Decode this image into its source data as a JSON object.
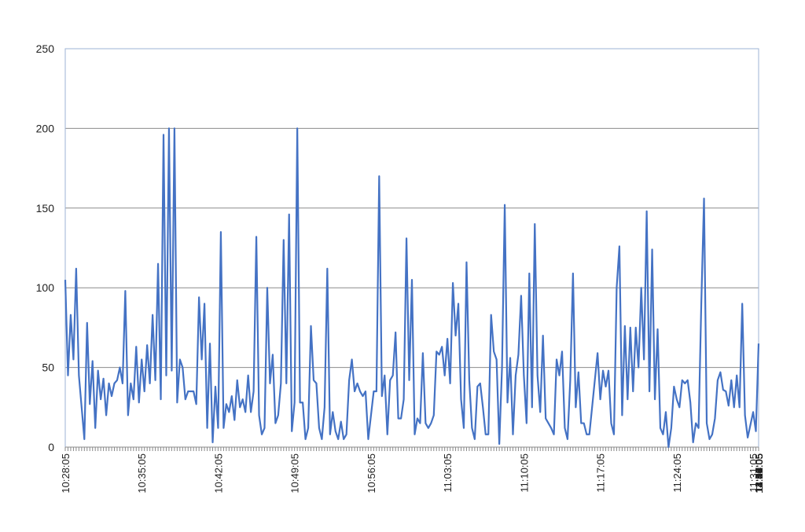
{
  "chart_data": {
    "type": "line",
    "title": "",
    "xlabel": "",
    "ylabel": "",
    "ylim": [
      0,
      250
    ],
    "y_ticks": [
      0,
      50,
      100,
      150,
      200,
      250
    ],
    "grid": "horizontal",
    "legend": "none",
    "colors": {
      "line": "#4472c4",
      "grid": "#8c8c8c",
      "frame": "#9db3d4"
    },
    "x_tick_labels": [
      "10:28:05",
      "10:35:05",
      "10:42:05",
      "10:49:05",
      "10:56:05",
      "11:03:05",
      "11:10:05",
      "11:17:05",
      "11:24:05",
      "11:31:05",
      "11:38:05",
      "11:45:05",
      "11:52:05",
      "11:59:05",
      "12:06:05",
      "12:13:05",
      "12:20:05",
      "12:27:05",
      "12:34:05",
      "12:41:05",
      "12:48:05",
      "12:55:05",
      "13:02:05",
      "13:09:05",
      "13:16:05",
      "13:23:05",
      "13:30:05",
      "13:37:05",
      "13:44:05",
      "13:51:05",
      "13:58:05",
      "14:05:05",
      "14:12:05",
      "14:19:05",
      "14:26:05",
      "14:33:05",
      "14:40:05",
      "14:47:05",
      "14:54:05"
    ],
    "x_start": "10:28:05",
    "x_end": "14:58:05",
    "series": [
      {
        "values": [
          105,
          45,
          83,
          55,
          112,
          45,
          25,
          5,
          78,
          27,
          54,
          12,
          48,
          30,
          43,
          20,
          40,
          32,
          40,
          42,
          50,
          40,
          98,
          20,
          40,
          30,
          63,
          28,
          55,
          35,
          64,
          40,
          83,
          42,
          115,
          30,
          196,
          45,
          200,
          48,
          200,
          28,
          55,
          50,
          30,
          35,
          35,
          35,
          27,
          94,
          55,
          90,
          12,
          65,
          3,
          38,
          12,
          135,
          12,
          27,
          22,
          32,
          17,
          42,
          25,
          30,
          22,
          45,
          22,
          35,
          132,
          20,
          8,
          12,
          100,
          40,
          58,
          15,
          20,
          40,
          130,
          40,
          146,
          10,
          28,
          200,
          28,
          28,
          5,
          12,
          76,
          42,
          40,
          12,
          5,
          25,
          112,
          8,
          22,
          10,
          5,
          16,
          5,
          8,
          42,
          55,
          35,
          40,
          35,
          32,
          35,
          5,
          20,
          35,
          35,
          170,
          32,
          45,
          8,
          42,
          45,
          72,
          18,
          18,
          30,
          131,
          42,
          105,
          8,
          18,
          15,
          59,
          15,
          12,
          15,
          20,
          60,
          58,
          63,
          45,
          68,
          40,
          103,
          70,
          90,
          30,
          12,
          116,
          42,
          12,
          5,
          38,
          40,
          25,
          8,
          8,
          83,
          60,
          55,
          2,
          50,
          152,
          28,
          56,
          8,
          45,
          58,
          95,
          45,
          15,
          109,
          25,
          140,
          45,
          22,
          70,
          18,
          15,
          12,
          8,
          55,
          45,
          60,
          12,
          5,
          42,
          109,
          25,
          47,
          15,
          15,
          8,
          8,
          25,
          42,
          59,
          30,
          48,
          38,
          48,
          15,
          8,
          100,
          126,
          20,
          76,
          30,
          75,
          35,
          75,
          50,
          100,
          55,
          148,
          35,
          124,
          30,
          74,
          12,
          8,
          22,
          0,
          12,
          38,
          30,
          25,
          42,
          40,
          42,
          28,
          3,
          15,
          12,
          90,
          156,
          15,
          5,
          8,
          18,
          42,
          47,
          36,
          35,
          26,
          42,
          25,
          45,
          25,
          90,
          20,
          6,
          14,
          22,
          10,
          65
        ]
      }
    ]
  }
}
